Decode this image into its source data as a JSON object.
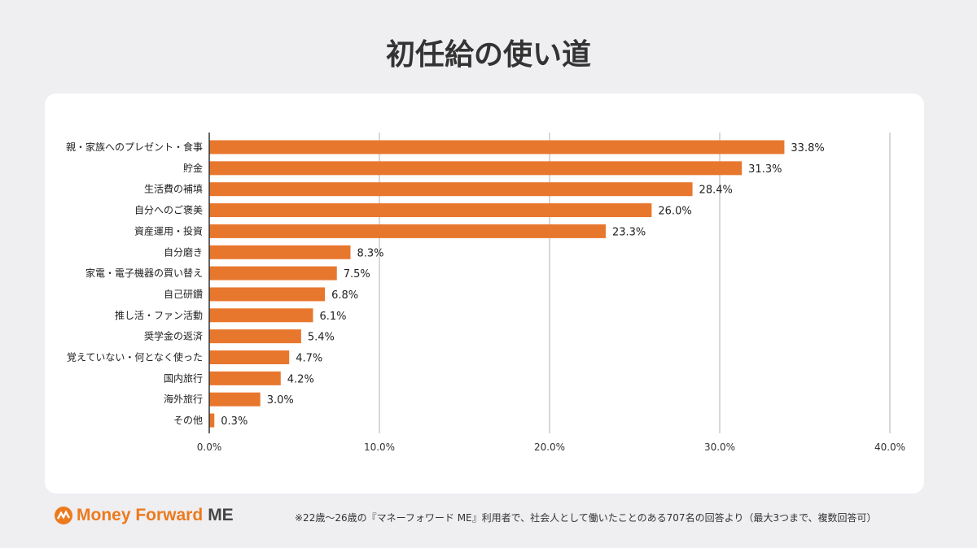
{
  "chart_data": {
    "type": "bar",
    "orientation": "horizontal",
    "title": "初任給の使い道",
    "categories": [
      "親・家族へのプレゼント・食事",
      "貯金",
      "生活費の補填",
      "自分へのご褒美",
      "資産運用・投資",
      "自分磨き",
      "家電・電子機器の買い替え",
      "自己研鑽",
      "推し活・ファン活動",
      "奨学金の返済",
      "覚えていない・何となく使った",
      "国内旅行",
      "海外旅行",
      "その他"
    ],
    "values": [
      33.8,
      31.3,
      28.4,
      26.0,
      23.3,
      8.3,
      7.5,
      6.8,
      6.1,
      5.4,
      4.7,
      4.2,
      3.0,
      0.3
    ],
    "value_labels": [
      "33.8%",
      "31.3%",
      "28.4%",
      "26.0%",
      "23.3%",
      "8.3%",
      "7.5%",
      "6.8%",
      "6.1%",
      "5.4%",
      "4.7%",
      "4.2%",
      "3.0%",
      "0.3%"
    ],
    "xlim": [
      0,
      40
    ],
    "x_ticks": [
      "0.0%",
      "10.0%",
      "20.0%",
      "30.0%",
      "40.0%"
    ],
    "grid": true,
    "bar_color": "#e8772e"
  },
  "footer": {
    "logo_text_1": "Money Forward",
    "logo_text_2": "ME",
    "note": "※22歳〜26歳の『マネーフォワード ME』利用者で、社会人として働いたことのある707名の回答より（最大3つまで、複数回答可）"
  }
}
